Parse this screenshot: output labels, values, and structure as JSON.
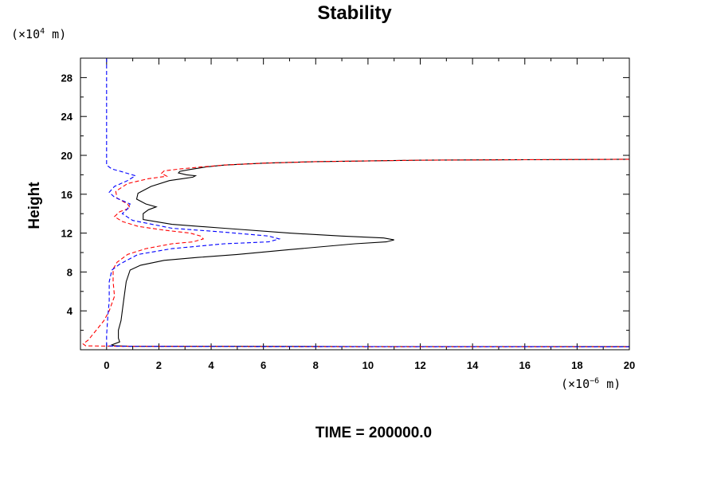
{
  "chart_data": {
    "type": "line",
    "title": "Stability",
    "ylabel": "Height",
    "xlabel": "",
    "x_unit": {
      "prefix": "(×10",
      "exp": "−6",
      "suffix": " m)"
    },
    "y_unit": {
      "prefix": "(×10",
      "exp": "4",
      "suffix": " m)"
    },
    "xlim": [
      -1,
      20
    ],
    "ylim": [
      0,
      30
    ],
    "xticks": [
      0,
      2,
      4,
      6,
      8,
      10,
      12,
      14,
      16,
      18,
      20
    ],
    "yticks": [
      4,
      8,
      12,
      16,
      20,
      24,
      28
    ],
    "footer": "TIME = 200000.0",
    "series": [
      {
        "name": "black-solid",
        "color": "#000000",
        "dash": "solid",
        "points": [
          [
            20,
            19.6
          ],
          [
            16,
            19.55
          ],
          [
            12,
            19.5
          ],
          [
            8,
            19.35
          ],
          [
            6,
            19.2
          ],
          [
            4.5,
            19.0
          ],
          [
            3.8,
            18.8
          ],
          [
            3.2,
            18.55
          ],
          [
            2.8,
            18.35
          ],
          [
            2.75,
            18.2
          ],
          [
            3.05,
            18.0
          ],
          [
            3.4,
            17.9
          ],
          [
            3.3,
            17.75
          ],
          [
            2.9,
            17.6
          ],
          [
            2.4,
            17.4
          ],
          [
            1.7,
            16.8
          ],
          [
            1.2,
            16.1
          ],
          [
            1.15,
            15.5
          ],
          [
            1.5,
            15.0
          ],
          [
            1.9,
            14.7
          ],
          [
            1.6,
            14.4
          ],
          [
            1.4,
            14.0
          ],
          [
            1.4,
            13.4
          ],
          [
            2.5,
            12.9
          ],
          [
            4.5,
            12.5
          ],
          [
            7.0,
            12.0
          ],
          [
            9.0,
            11.7
          ],
          [
            10.6,
            11.5
          ],
          [
            11.0,
            11.3
          ],
          [
            10.7,
            11.1
          ],
          [
            9.5,
            10.9
          ],
          [
            7.0,
            10.3
          ],
          [
            5.0,
            9.8
          ],
          [
            3.5,
            9.5
          ],
          [
            2.2,
            9.2
          ],
          [
            1.3,
            8.7
          ],
          [
            0.9,
            8.2
          ],
          [
            0.75,
            7.0
          ],
          [
            0.65,
            5.0
          ],
          [
            0.55,
            3.0
          ],
          [
            0.45,
            2.0
          ],
          [
            0.45,
            1.2
          ],
          [
            0.5,
            0.8
          ],
          [
            0.2,
            0.5
          ],
          [
            0.3,
            0.4
          ],
          [
            1.0,
            0.35
          ],
          [
            5.0,
            0.35
          ],
          [
            10.0,
            0.33
          ],
          [
            15.0,
            0.33
          ],
          [
            20.0,
            0.32
          ]
        ]
      },
      {
        "name": "red-dashed",
        "color": "#ff0000",
        "dash": "dashed",
        "points": [
          [
            20,
            19.6
          ],
          [
            16,
            19.55
          ],
          [
            12,
            19.5
          ],
          [
            8,
            19.35
          ],
          [
            6,
            19.2
          ],
          [
            4.5,
            19.0
          ],
          [
            3.6,
            18.8
          ],
          [
            2.8,
            18.6
          ],
          [
            2.2,
            18.4
          ],
          [
            2.1,
            18.15
          ],
          [
            2.3,
            17.85
          ],
          [
            1.6,
            17.6
          ],
          [
            0.8,
            17.1
          ],
          [
            0.35,
            16.3
          ],
          [
            0.4,
            15.6
          ],
          [
            0.8,
            15.0
          ],
          [
            0.9,
            14.6
          ],
          [
            0.5,
            14.2
          ],
          [
            0.3,
            13.7
          ],
          [
            0.6,
            13.2
          ],
          [
            1.2,
            12.7
          ],
          [
            2.2,
            12.3
          ],
          [
            3.2,
            12.0
          ],
          [
            3.6,
            11.7
          ],
          [
            3.7,
            11.4
          ],
          [
            3.3,
            11.1
          ],
          [
            2.5,
            10.9
          ],
          [
            1.5,
            10.4
          ],
          [
            0.8,
            9.8
          ],
          [
            0.4,
            9.0
          ],
          [
            0.25,
            8.3
          ],
          [
            0.25,
            7.0
          ],
          [
            0.3,
            5.5
          ],
          [
            0.1,
            4.0
          ],
          [
            -0.1,
            3.0
          ],
          [
            -0.4,
            2.0
          ],
          [
            -0.7,
            1.0
          ],
          [
            -0.9,
            0.6
          ],
          [
            -0.8,
            0.4
          ],
          [
            0.5,
            0.35
          ],
          [
            5.0,
            0.33
          ],
          [
            10.0,
            0.3
          ],
          [
            15.0,
            0.3
          ],
          [
            20.0,
            0.3
          ]
        ]
      },
      {
        "name": "blue-dashed",
        "color": "#0000ff",
        "dash": "dashed",
        "points": [
          [
            0.0,
            30
          ],
          [
            0.0,
            19.0
          ],
          [
            0.2,
            18.6
          ],
          [
            0.6,
            18.3
          ],
          [
            1.1,
            17.9
          ],
          [
            0.8,
            17.4
          ],
          [
            0.3,
            16.8
          ],
          [
            0.1,
            16.2
          ],
          [
            0.3,
            15.7
          ],
          [
            0.9,
            15.0
          ],
          [
            0.8,
            14.5
          ],
          [
            0.6,
            14.0
          ],
          [
            1.0,
            13.3
          ],
          [
            2.5,
            12.5
          ],
          [
            4.5,
            12.1
          ],
          [
            6.2,
            11.7
          ],
          [
            6.6,
            11.4
          ],
          [
            6.2,
            11.1
          ],
          [
            4.5,
            10.9
          ],
          [
            2.5,
            10.4
          ],
          [
            1.2,
            9.8
          ],
          [
            0.5,
            8.8
          ],
          [
            0.2,
            8.2
          ],
          [
            0.1,
            7.0
          ],
          [
            0.1,
            5.0
          ],
          [
            0.05,
            3.5
          ],
          [
            0.0,
            1.5
          ],
          [
            0.0,
            0.4
          ],
          [
            0.5,
            0.35
          ],
          [
            5.0,
            0.33
          ],
          [
            10.0,
            0.32
          ],
          [
            20.0,
            0.3
          ]
        ]
      }
    ]
  }
}
